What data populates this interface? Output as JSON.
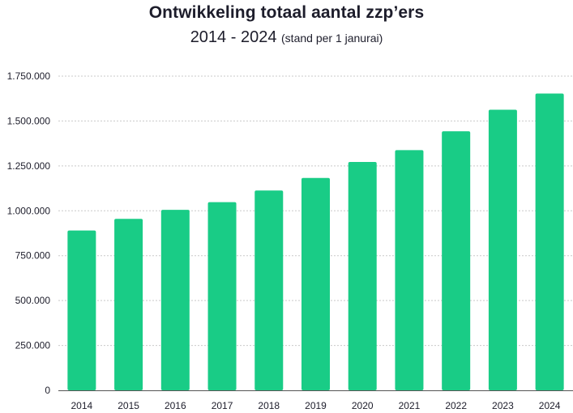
{
  "chart_data": {
    "type": "bar",
    "title": "Ontwikkeling totaal aantal zzp’ers",
    "subtitle": "2014 - 2024",
    "subtitle_note": "(stand per 1 janurai)",
    "categories": [
      "2014",
      "2015",
      "2016",
      "2017",
      "2018",
      "2019",
      "2020",
      "2021",
      "2022",
      "2023",
      "2024"
    ],
    "values": [
      890000,
      955000,
      1005000,
      1048000,
      1113000,
      1183000,
      1272000,
      1338000,
      1443000,
      1563000,
      1653000
    ],
    "ylim": [
      0,
      1750000
    ],
    "yticks": [
      0,
      250000,
      500000,
      750000,
      1000000,
      1250000,
      1500000,
      1750000
    ],
    "ytick_labels": [
      "0",
      "250.000",
      "500.000",
      "750.000",
      "1.000.000",
      "1.250.000",
      "1.500.000",
      "1.750.000"
    ],
    "xlabel": "",
    "ylabel": "",
    "grid": true,
    "bar_color": "#19cc86",
    "grid_color": "#c9c9c9"
  }
}
